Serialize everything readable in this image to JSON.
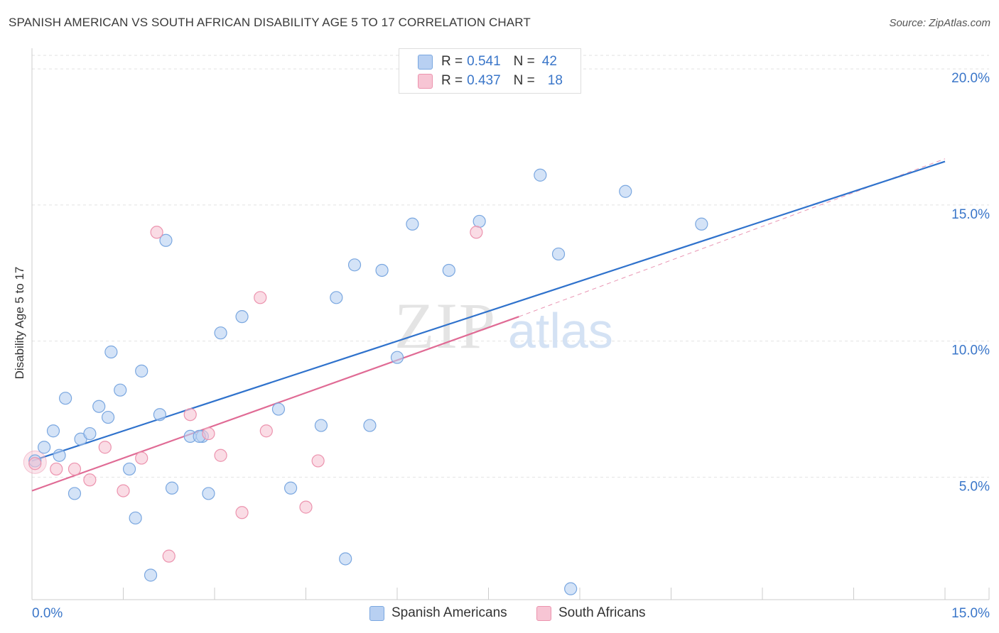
{
  "header": {
    "title": "SPANISH AMERICAN VS SOUTH AFRICAN DISABILITY AGE 5 TO 17 CORRELATION CHART",
    "source": "Source: ZipAtlas.com"
  },
  "legend": {
    "rows": [
      {
        "r_label": "R =",
        "r_value": "0.541",
        "n_label": "N =",
        "n_value": "42"
      },
      {
        "r_label": "R =",
        "r_value": "0.437",
        "n_label": "N =",
        "n_value": "18"
      }
    ]
  },
  "watermark": {
    "zip": "ZIP",
    "atlas": "atlas"
  },
  "colors": {
    "blue_fill": "#b8d0f2",
    "blue_stroke": "#7aa7e0",
    "blue_line": "#2f72cc",
    "pink_fill": "#f7c5d4",
    "pink_stroke": "#ec93ae",
    "pink_line": "#e06b95",
    "axis_text": "#3a76c9",
    "grid": "#e2e2e2"
  },
  "chart_data": {
    "type": "scatter",
    "title": "SPANISH AMERICAN VS SOUTH AFRICAN DISABILITY AGE 5 TO 17 CORRELATION CHART",
    "xlabel": "",
    "ylabel": "Disability Age 5 to 17",
    "xlim": [
      0,
      15
    ],
    "ylim": [
      0.5,
      20.5
    ],
    "x_tick_labels": [
      "0.0%",
      "15.0%"
    ],
    "y_ticks": [
      5,
      10,
      15,
      20
    ],
    "y_tick_labels": [
      "5.0%",
      "10.0%",
      "15.0%",
      "20.0%"
    ],
    "grid": true,
    "legend_position": "top-center",
    "series": [
      {
        "name": "Spanish Americans",
        "color": "#7aa7e0",
        "points": [
          [
            0.05,
            5.6
          ],
          [
            0.2,
            6.1
          ],
          [
            0.35,
            6.7
          ],
          [
            0.45,
            5.8
          ],
          [
            0.55,
            7.9
          ],
          [
            0.7,
            4.4
          ],
          [
            0.8,
            6.4
          ],
          [
            0.95,
            6.6
          ],
          [
            1.1,
            7.6
          ],
          [
            1.25,
            7.2
          ],
          [
            1.3,
            9.6
          ],
          [
            1.45,
            8.2
          ],
          [
            1.6,
            5.3
          ],
          [
            1.7,
            3.5
          ],
          [
            1.8,
            8.9
          ],
          [
            1.95,
            1.4
          ],
          [
            2.1,
            7.3
          ],
          [
            2.2,
            13.7
          ],
          [
            2.3,
            4.6
          ],
          [
            2.6,
            6.5
          ],
          [
            2.8,
            6.5
          ],
          [
            2.9,
            4.4
          ],
          [
            3.1,
            10.3
          ],
          [
            3.45,
            10.9
          ],
          [
            4.05,
            7.5
          ],
          [
            4.25,
            4.6
          ],
          [
            4.75,
            6.9
          ],
          [
            5.0,
            11.6
          ],
          [
            5.15,
            2.0
          ],
          [
            5.3,
            12.8
          ],
          [
            5.55,
            6.9
          ],
          [
            5.75,
            12.6
          ],
          [
            6.0,
            9.4
          ],
          [
            6.25,
            14.3
          ],
          [
            6.85,
            12.6
          ],
          [
            7.35,
            14.4
          ],
          [
            8.35,
            16.1
          ],
          [
            8.65,
            13.2
          ],
          [
            8.85,
            0.9
          ],
          [
            9.75,
            15.5
          ],
          [
            11.0,
            14.3
          ],
          [
            2.75,
            6.5
          ]
        ],
        "trend": {
          "x": [
            0.0,
            15.0
          ],
          "y": [
            5.6,
            16.6
          ]
        }
      },
      {
        "name": "South Africans",
        "color": "#ec93ae",
        "points": [
          [
            0.05,
            5.5
          ],
          [
            0.4,
            5.3
          ],
          [
            0.7,
            5.3
          ],
          [
            0.95,
            4.9
          ],
          [
            1.2,
            6.1
          ],
          [
            1.5,
            4.5
          ],
          [
            1.8,
            5.7
          ],
          [
            2.05,
            14.0
          ],
          [
            2.25,
            2.1
          ],
          [
            2.6,
            7.3
          ],
          [
            2.9,
            6.6
          ],
          [
            3.1,
            5.8
          ],
          [
            3.45,
            3.7
          ],
          [
            3.75,
            11.6
          ],
          [
            3.85,
            6.7
          ],
          [
            4.5,
            3.9
          ],
          [
            4.7,
            5.6
          ],
          [
            7.3,
            14.0
          ]
        ],
        "trend": {
          "x": [
            0.0,
            8.0
          ],
          "y": [
            4.5,
            10.9
          ]
        },
        "trend_dashed": {
          "x": [
            8.0,
            15.0
          ],
          "y": [
            10.9,
            16.7
          ]
        }
      }
    ]
  },
  "bottom_legend": {
    "items": [
      {
        "label": "Spanish Americans"
      },
      {
        "label": "South Africans"
      }
    ]
  }
}
